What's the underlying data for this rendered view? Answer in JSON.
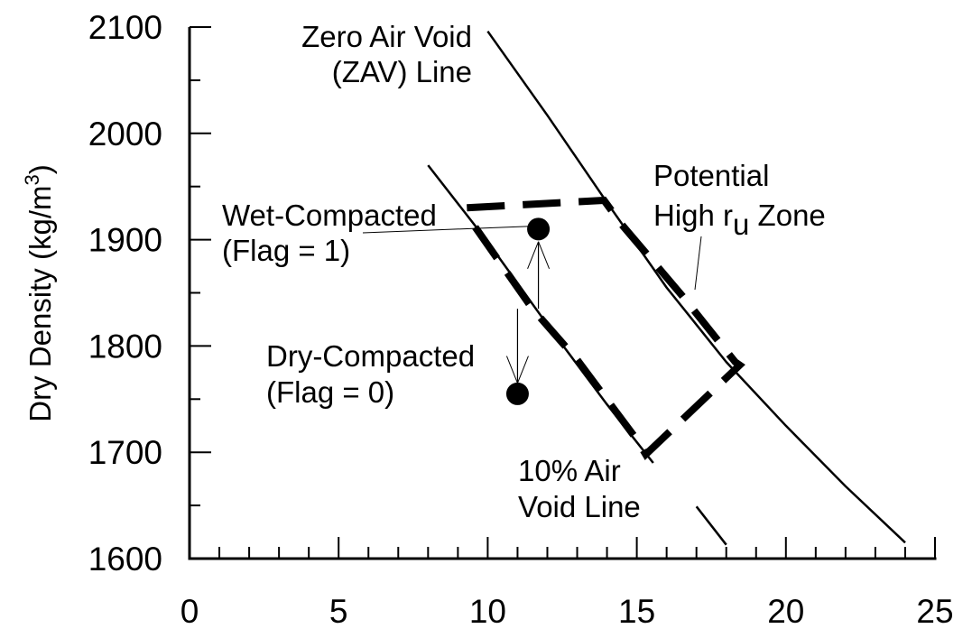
{
  "chart_data": {
    "type": "line",
    "title": "",
    "xlabel": "",
    "ylabel": "Dry Density (kg/m",
    "ylabel_superscript": "3",
    "ylabel_suffix": ")",
    "xlim": [
      0,
      25
    ],
    "ylim": [
      1600,
      2100
    ],
    "x_major_ticks": [
      0,
      5,
      10,
      15,
      20,
      25
    ],
    "x_tick_labels": [
      "0",
      "5",
      "10",
      "15",
      "20",
      "25"
    ],
    "x_minor_step": 1,
    "y_major_ticks": [
      1600,
      1700,
      1800,
      1900,
      2000,
      2100
    ],
    "y_tick_labels": [
      "1600",
      "1700",
      "1800",
      "1900",
      "2000",
      "2100"
    ],
    "y_minor_step": 50,
    "grid": false,
    "series": [
      {
        "name": "Zero Air Void (ZAV) Line",
        "style": "solid",
        "points": [
          [
            10.0,
            2096
          ],
          [
            12.0,
            2017
          ],
          [
            14.0,
            1935
          ],
          [
            16.0,
            1855
          ],
          [
            18.0,
            1785
          ],
          [
            20.0,
            1725
          ],
          [
            22.0,
            1668
          ],
          [
            24.0,
            1615
          ]
        ]
      },
      {
        "name": "10% Air Void Line",
        "style": "solid",
        "segments": [
          [
            [
              8.0,
              1970
            ],
            [
              10.0,
              1898
            ],
            [
              12.0,
              1820
            ],
            [
              14.0,
              1745
            ],
            [
              15.55,
              1690
            ]
          ],
          [
            [
              17.0,
              1649
            ],
            [
              18.0,
              1613
            ]
          ]
        ]
      },
      {
        "name": "Potential High ru Zone",
        "style": "dashed-thick",
        "points": [
          [
            9.3,
            1930
          ],
          [
            13.9,
            1937
          ],
          [
            14.5,
            1914
          ],
          [
            16.5,
            1848
          ],
          [
            18.3,
            1785
          ],
          [
            18.45,
            1782
          ],
          [
            15.3,
            1698
          ],
          [
            15.0,
            1712
          ],
          [
            13.0,
            1787
          ],
          [
            11.5,
            1835
          ],
          [
            9.5,
            1915
          ]
        ]
      }
    ],
    "points": [
      {
        "name": "Wet-Compacted",
        "x": 11.7,
        "y": 1910,
        "flag": 1
      },
      {
        "name": "Dry-Compacted",
        "x": 11.0,
        "y": 1755,
        "flag": 0
      }
    ],
    "annotations": [
      {
        "id": "zav",
        "lines": [
          "Zero Air Void",
          "(ZAV) Line"
        ]
      },
      {
        "id": "zone",
        "lines": [
          "Potential",
          "High r",
          "u",
          " Zone"
        ]
      },
      {
        "id": "wet",
        "lines": [
          "Wet-Compacted",
          "(Flag = 1)"
        ]
      },
      {
        "id": "dry",
        "lines": [
          "Dry-Compacted",
          "(Flag = 0)"
        ]
      },
      {
        "id": "air10",
        "lines": [
          "10% Air",
          "Void Line"
        ]
      }
    ],
    "arrows": [
      {
        "from": [
          11.7,
          1835
        ],
        "to": [
          11.7,
          1910
        ],
        "meaning": "dry-to-wet"
      },
      {
        "from": [
          11.0,
          1835
        ],
        "to": [
          11.0,
          1760
        ],
        "meaning": "wet-to-dry"
      }
    ]
  }
}
